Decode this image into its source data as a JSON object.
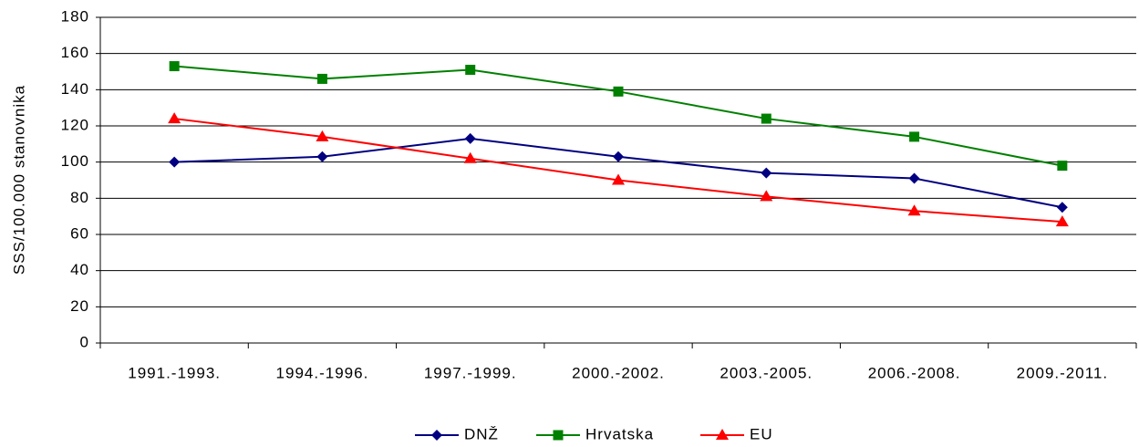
{
  "chart_data": {
    "type": "line",
    "ylabel": "SSS/100.000 stanovnika",
    "categories": [
      "1991.-1993.",
      "1994.-1996.",
      "1997.-1999.",
      "2000.-2002.",
      "2003.-2005.",
      "2006.-2008.",
      "2009.-2011."
    ],
    "series": [
      {
        "name": "DNŽ",
        "color": "#000080",
        "marker": "diamond",
        "values": [
          100,
          103,
          113,
          103,
          94,
          91,
          75
        ]
      },
      {
        "name": "Hrvatska",
        "color": "#008000",
        "marker": "square",
        "values": [
          153,
          146,
          151,
          139,
          124,
          114,
          98
        ]
      },
      {
        "name": "EU",
        "color": "#ff0000",
        "marker": "triangle",
        "values": [
          124,
          114,
          102,
          90,
          81,
          73,
          67
        ]
      }
    ],
    "ylim": [
      0,
      180
    ],
    "yticks": [
      0,
      20,
      40,
      60,
      80,
      100,
      120,
      140,
      160,
      180
    ],
    "grid": true,
    "legend": "bottom"
  }
}
